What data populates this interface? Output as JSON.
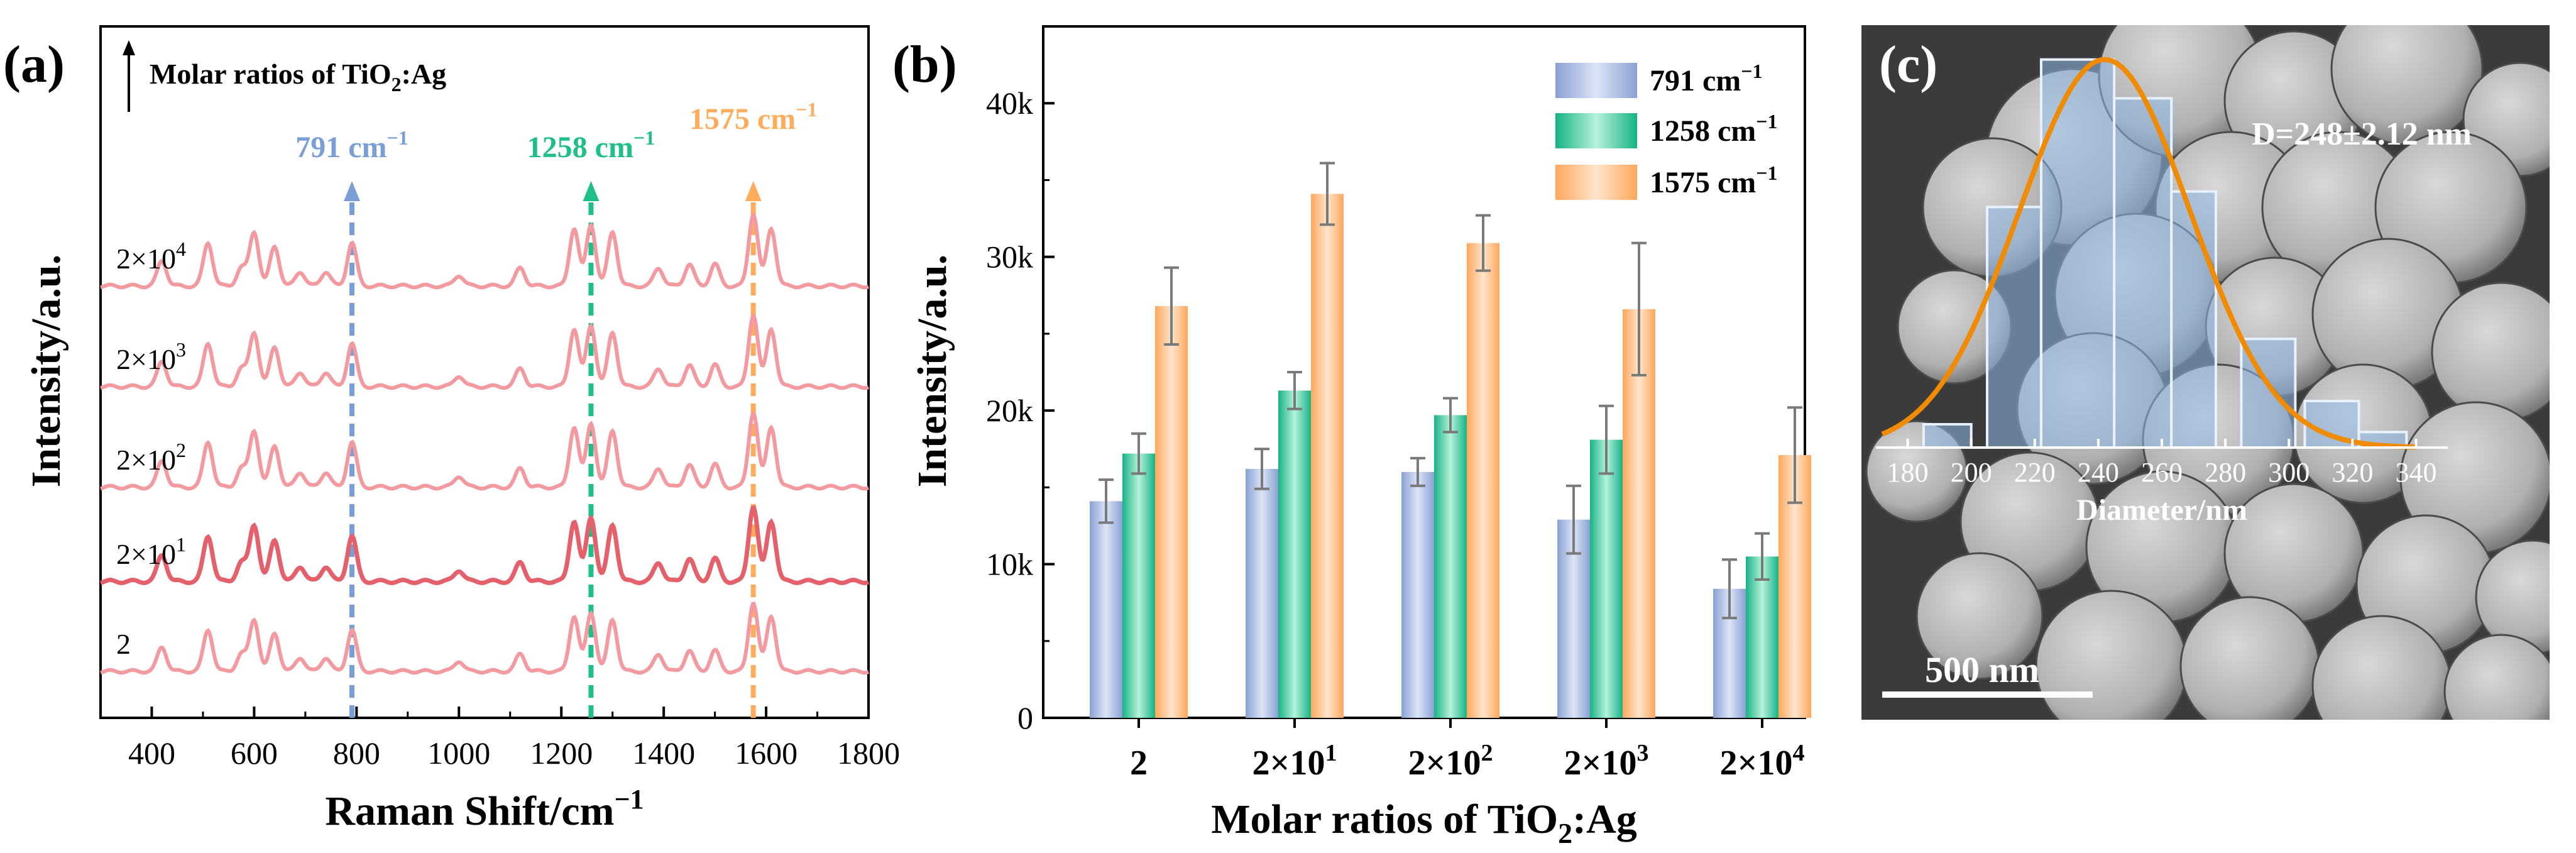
{
  "colors": {
    "blue": "#9fb3dc",
    "green": "#2ecf9f",
    "orange": "#ffb97a",
    "spectrum": "#f39aa0",
    "spectrum_highlight": "#e4606a",
    "gauss": "#f08a00",
    "error": "#7a7a7a"
  },
  "chart_data": [
    {
      "panel": "(a)",
      "type": "line",
      "arrow_label_main": "Molar ratios of TiO",
      "arrow_label_sub": "2",
      "arrow_label_end": ":Ag",
      "xlabel": "Raman Shift/cm",
      "xlabel_sup": "−1",
      "ylabel": "Intensity/a.u.",
      "xlim": [
        300,
        1800
      ],
      "xticks": [
        "400",
        "600",
        "800",
        "1000",
        "1200",
        "1400",
        "1600",
        "1800"
      ],
      "xtick_values": [
        400,
        600,
        800,
        1000,
        1200,
        1400,
        1600,
        1800
      ],
      "marker_lines": [
        {
          "x": 791,
          "label": "791 cm",
          "sup": "−1",
          "color": "#7a9fd6"
        },
        {
          "x": 1258,
          "label": "1258 cm",
          "sup": "−1",
          "color": "#1fbf8a"
        },
        {
          "x": 1575,
          "label": "1575 cm",
          "sup": "−1",
          "color": "#ffad5c"
        }
      ],
      "peaks": [
        {
          "x": 420,
          "h": 0.35
        },
        {
          "x": 510,
          "h": 0.6
        },
        {
          "x": 575,
          "h": 0.25
        },
        {
          "x": 600,
          "h": 0.75
        },
        {
          "x": 640,
          "h": 0.55
        },
        {
          "x": 690,
          "h": 0.2
        },
        {
          "x": 740,
          "h": 0.2
        },
        {
          "x": 791,
          "h": 0.6
        },
        {
          "x": 1000,
          "h": 0.15
        },
        {
          "x": 1120,
          "h": 0.25
        },
        {
          "x": 1225,
          "h": 0.8
        },
        {
          "x": 1258,
          "h": 0.85
        },
        {
          "x": 1300,
          "h": 0.75
        },
        {
          "x": 1390,
          "h": 0.25
        },
        {
          "x": 1450,
          "h": 0.3
        },
        {
          "x": 1500,
          "h": 0.3
        },
        {
          "x": 1575,
          "h": 1.0
        },
        {
          "x": 1610,
          "h": 0.8
        }
      ],
      "series": [
        {
          "name": "2",
          "label": "2",
          "exp": ""
        },
        {
          "name": "2×10^1",
          "label": "2×10",
          "exp": "1"
        },
        {
          "name": "2×10^2",
          "label": "2×10",
          "exp": "2"
        },
        {
          "name": "2×10^3",
          "label": "2×10",
          "exp": "3"
        },
        {
          "name": "2×10^4",
          "label": "2×10",
          "exp": "4"
        }
      ]
    },
    {
      "panel": "(b)",
      "type": "bar",
      "xlabel_main": "Molar ratios of TiO",
      "xlabel_sub": "2",
      "xlabel_end": ":Ag",
      "ylabel": "Intensity/a.u.",
      "ylim": [
        0,
        45000
      ],
      "yticks": [
        {
          "v": 0,
          "t": "0"
        },
        {
          "v": 10000,
          "t": "10k"
        },
        {
          "v": 20000,
          "t": "20k"
        },
        {
          "v": 30000,
          "t": "30k"
        },
        {
          "v": 40000,
          "t": "40k"
        }
      ],
      "categories": [
        {
          "t": "2",
          "exp": ""
        },
        {
          "t": "2×10",
          "exp": "1"
        },
        {
          "t": "2×10",
          "exp": "2"
        },
        {
          "t": "2×10",
          "exp": "3"
        },
        {
          "t": "2×10",
          "exp": "4"
        }
      ],
      "series": [
        {
          "name": "791 cm",
          "sup": "−1",
          "values": [
            14100,
            16200,
            16000,
            12900,
            8400
          ],
          "errors": [
            1400,
            1300,
            900,
            2200,
            1900
          ]
        },
        {
          "name": "1258 cm",
          "sup": "−1",
          "values": [
            17200,
            21300,
            19700,
            18100,
            10500
          ],
          "errors": [
            1300,
            1200,
            1100,
            2200,
            1500
          ]
        },
        {
          "name": "1575 cm",
          "sup": "−1",
          "values": [
            26800,
            34100,
            30900,
            26600,
            17100
          ],
          "errors": [
            2500,
            2000,
            1800,
            4300,
            3100
          ]
        }
      ]
    },
    {
      "panel": "(c)",
      "type": "bar",
      "annotation": "D=248±2.12 nm",
      "scale_bar": "500 nm",
      "xlabel": "Diameter/nm",
      "xlim": [
        170,
        350
      ],
      "xticks": [
        180,
        200,
        220,
        240,
        260,
        280,
        300,
        320,
        340
      ],
      "bins": [
        {
          "x0": 185,
          "x1": 200,
          "count": 3
        },
        {
          "x0": 205,
          "x1": 222,
          "count": 31
        },
        {
          "x0": 222,
          "x1": 245,
          "count": 50
        },
        {
          "x0": 245,
          "x1": 263,
          "count": 45
        },
        {
          "x0": 263,
          "x1": 277,
          "count": 33
        },
        {
          "x0": 285,
          "x1": 302,
          "count": 14
        },
        {
          "x0": 305,
          "x1": 322,
          "count": 6
        },
        {
          "x0": 322,
          "x1": 337,
          "count": 2
        }
      ],
      "ymax": 52,
      "gauss": {
        "mean": 242,
        "sigma": 27,
        "peak": 50
      }
    }
  ]
}
